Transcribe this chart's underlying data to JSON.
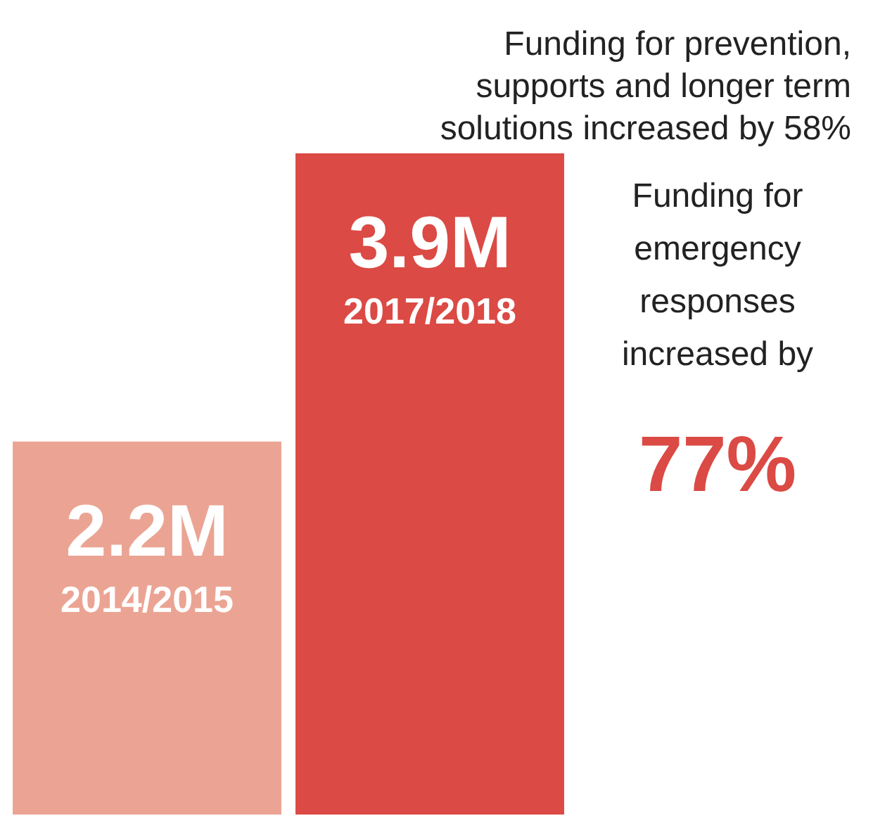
{
  "chart_data": {
    "type": "bar",
    "categories": [
      "2014/2015",
      "2017/2018"
    ],
    "values": [
      2.2,
      3.9
    ],
    "colors": [
      "#eba493",
      "#db4a44"
    ],
    "value_labels": [
      "2.2M",
      "3.9M"
    ],
    "annotations": [
      "Funding for prevention, supports and longer term solutions increased by 58%",
      "Funding for emergency responses increased by",
      "77%"
    ],
    "grid": false,
    "tick_labels": false
  }
}
